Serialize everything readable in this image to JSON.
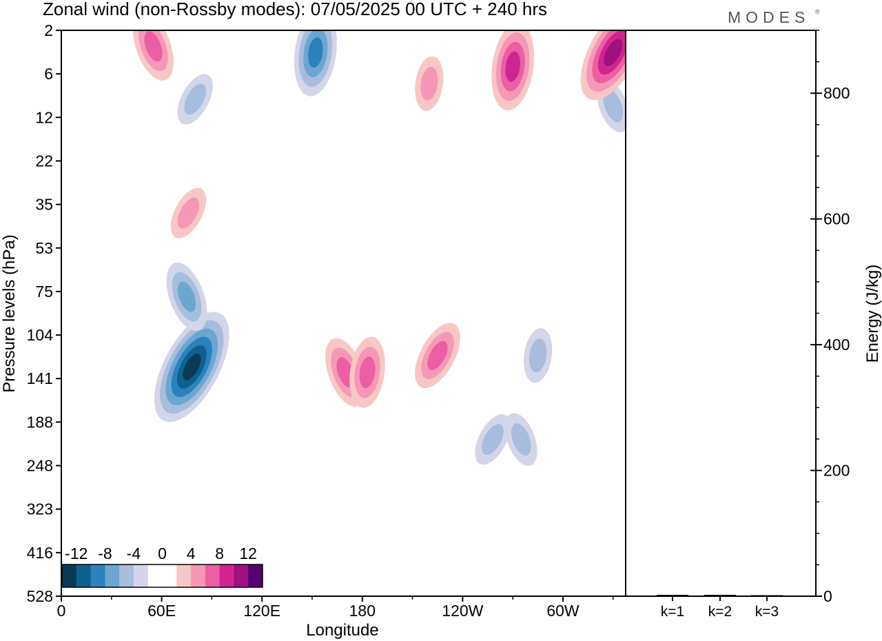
{
  "title": "Zonal wind (non-Rossby modes):  07/05/2025  00 UTC  + 240 hrs",
  "logo": "MODES",
  "logo_mark": "®",
  "chart_data": [
    {
      "type": "heatmap",
      "title": "Zonal wind (non-Rossby modes):  07/05/2025  00 UTC  + 240 hrs",
      "xlabel": "Longitude",
      "ylabel": "Pressure levels (hPa)",
      "x_ticks": [
        "0",
        "60E",
        "120E",
        "180",
        "120W",
        "60W"
      ],
      "x_tick_values": [
        0,
        60,
        120,
        180,
        240,
        300
      ],
      "xlim": [
        0,
        337.5
      ],
      "y_ticks": [
        "2",
        "6",
        "12",
        "22",
        "35",
        "53",
        "75",
        "104",
        "141",
        "188",
        "248",
        "323",
        "416",
        "528"
      ],
      "y_scale": "log-pressure (top = 2 hPa, bottom = 528 hPa)",
      "colorbar": {
        "labels": [
          "-12",
          "-8",
          "-4",
          "0",
          "4",
          "8",
          "12"
        ],
        "label_values": [
          -12,
          -8,
          -4,
          0,
          4,
          8,
          12
        ],
        "colors": [
          "#0b3a59",
          "#10608f",
          "#2b82bd",
          "#6ba6d0",
          "#a7bddd",
          "#d3d6e8",
          "#ffffff",
          "#ffffff",
          "#f7c7c6",
          "#f598b8",
          "#ec5fa2",
          "#cf2590",
          "#a0107f",
          "#560070"
        ]
      },
      "features": [
        {
          "type": "negative",
          "lon": 78,
          "pressure": 130,
          "peak": -14
        },
        {
          "type": "negative",
          "lon": 75,
          "pressure": 78,
          "peak": -6
        },
        {
          "type": "negative",
          "lon": 152,
          "pressure": 3.5,
          "peak": -9
        },
        {
          "type": "negative",
          "lon": 80,
          "pressure": 9,
          "peak": -4
        },
        {
          "type": "negative",
          "lon": 330,
          "pressure": 10,
          "peak": -4
        },
        {
          "type": "negative",
          "lon": 285,
          "pressure": 120,
          "peak": -4
        },
        {
          "type": "negative",
          "lon": 258,
          "pressure": 210,
          "peak": -4
        },
        {
          "type": "negative",
          "lon": 275,
          "pressure": 210,
          "peak": -4
        },
        {
          "type": "positive",
          "lon": 270,
          "pressure": 5,
          "peak": 9
        },
        {
          "type": "positive",
          "lon": 330,
          "pressure": 3.5,
          "peak": 11
        },
        {
          "type": "positive",
          "lon": 55,
          "pressure": 3,
          "peak": 6
        },
        {
          "type": "positive",
          "lon": 220,
          "pressure": 7,
          "peak": 4
        },
        {
          "type": "positive",
          "lon": 225,
          "pressure": 120,
          "peak": 6
        },
        {
          "type": "positive",
          "lon": 170,
          "pressure": 135,
          "peak": 6
        },
        {
          "type": "positive",
          "lon": 183,
          "pressure": 135,
          "peak": 6
        },
        {
          "type": "positive",
          "lon": 76,
          "pressure": 38,
          "peak": 4
        }
      ]
    },
    {
      "type": "bar",
      "ylabel": "Energy (J/kg)",
      "categories": [
        "k=1",
        "k=2",
        "k=3"
      ],
      "values": [
        1,
        1,
        0.5
      ],
      "ylim": [
        0,
        900
      ],
      "y_ticks": [
        0,
        200,
        400,
        600,
        800
      ]
    }
  ]
}
